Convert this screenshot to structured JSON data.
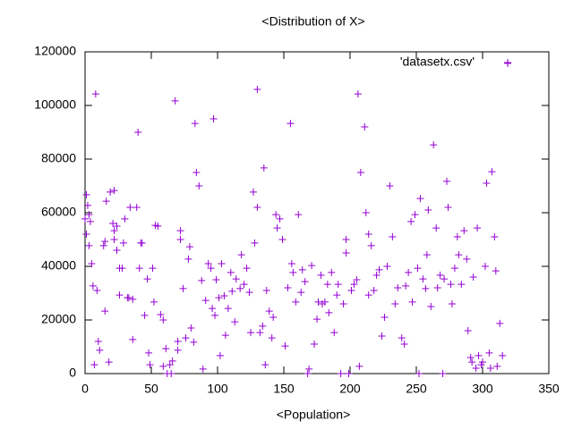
{
  "chart_data": {
    "type": "scatter",
    "title": "<Distribution of X>",
    "x_label": "<Population>",
    "xlim": [
      0,
      350
    ],
    "xticks": [
      0,
      50,
      100,
      150,
      200,
      250,
      300,
      350
    ],
    "ylim": [
      0,
      120000
    ],
    "yticks": [
      0,
      20000,
      40000,
      60000,
      80000,
      100000,
      120000
    ],
    "legend": "top-right",
    "grid": false,
    "x": [
      0,
      1,
      1,
      2,
      3,
      4,
      3,
      5,
      6,
      8,
      7,
      9,
      10,
      11,
      14,
      15,
      15,
      16,
      18,
      19,
      21,
      22,
      22,
      22,
      24,
      24,
      26,
      26,
      28,
      29,
      30,
      32,
      33,
      34,
      36,
      36,
      39,
      40,
      41,
      42,
      43,
      45,
      47,
      48,
      49,
      51,
      52,
      53,
      55,
      57,
      59,
      59,
      61,
      62,
      64,
      65,
      66,
      68,
      70,
      70,
      72,
      72,
      74,
      76,
      78,
      79,
      80,
      82,
      83,
      84,
      86,
      88,
      89,
      91,
      93,
      95,
      96,
      97,
      98,
      99,
      101,
      102,
      103,
      105,
      106,
      108,
      110,
      111,
      113,
      114,
      117,
      118,
      120,
      122,
      124,
      125,
      127,
      128,
      130,
      130,
      132,
      134,
      135,
      136,
      137,
      139,
      141,
      142,
      144,
      145,
      147,
      149,
      151,
      153,
      155,
      156,
      157,
      159,
      161,
      163,
      164,
      166,
      168,
      169,
      171,
      173,
      175,
      176,
      178,
      179,
      181,
      183,
      184,
      186,
      188,
      190,
      191,
      193,
      195,
      197,
      197,
      199,
      201,
      203,
      205,
      206,
      207,
      208,
      211,
      212,
      214,
      214,
      216,
      218,
      220,
      222,
      224,
      226,
      228,
      230,
      232,
      234,
      236,
      239,
      241,
      242,
      244,
      246,
      247,
      249,
      251,
      252,
      253,
      255,
      257,
      258,
      259,
      261,
      263,
      265,
      266,
      268,
      270,
      271,
      273,
      274,
      276,
      277,
      279,
      281,
      282,
      284,
      286,
      288,
      289,
      291,
      292,
      293,
      295,
      296,
      297,
      299,
      300,
      302,
      303,
      305,
      306,
      307,
      309,
      310,
      311,
      313,
      315,
      319
    ],
    "series": [
      {
        "name": "'datasetx.csv'",
        "color": "#9400d3",
        "values": [
          57700,
          52000,
          66700,
          62700,
          59300,
          56700,
          47700,
          41000,
          32700,
          104300,
          3300,
          31000,
          12000,
          8700,
          47700,
          49300,
          23300,
          64300,
          4300,
          67700,
          56000,
          53300,
          68300,
          50000,
          55000,
          46000,
          39300,
          29300,
          39300,
          48700,
          57700,
          28300,
          28300,
          62000,
          27700,
          12700,
          62000,
          90000,
          39300,
          48700,
          48700,
          21700,
          35300,
          7700,
          3300,
          39300,
          26700,
          55300,
          55000,
          22000,
          20000,
          2700,
          9300,
          0,
          3300,
          0,
          4700,
          101700,
          12000,
          8700,
          53300,
          50000,
          31700,
          13300,
          42700,
          47300,
          17000,
          11700,
          93300,
          75000,
          70000,
          34700,
          1700,
          27300,
          41000,
          39300,
          24300,
          95000,
          21700,
          35000,
          28300,
          6700,
          41000,
          29000,
          14300,
          24300,
          37700,
          30700,
          19300,
          35300,
          31700,
          44300,
          33300,
          39300,
          30300,
          15300,
          67700,
          48700,
          106000,
          62000,
          15300,
          17700,
          76700,
          3300,
          31000,
          23300,
          13300,
          21000,
          59300,
          54300,
          57700,
          50000,
          10300,
          32000,
          93300,
          41000,
          37700,
          26700,
          59300,
          30300,
          38700,
          34300,
          0,
          1700,
          40300,
          11000,
          20300,
          26700,
          36700,
          26000,
          26700,
          33300,
          22700,
          37700,
          15300,
          29300,
          33300,
          0,
          26000,
          50000,
          45000,
          0,
          31000,
          33300,
          35000,
          104300,
          2700,
          75000,
          92000,
          60000,
          52000,
          29300,
          47700,
          31000,
          36700,
          38700,
          14000,
          21000,
          40000,
          70000,
          51000,
          26000,
          32000,
          13300,
          11000,
          32700,
          37700,
          56700,
          26700,
          59300,
          39300,
          0,
          65300,
          35300,
          31700,
          44300,
          61000,
          25000,
          85300,
          54300,
          32000,
          36700,
          0,
          35300,
          71700,
          62000,
          33300,
          26000,
          39300,
          51000,
          44300,
          33300,
          53300,
          42700,
          16000,
          6000,
          4300,
          36000,
          2000,
          54300,
          6700,
          3300,
          4300,
          40000,
          71000,
          7700,
          2000,
          75300,
          51000,
          38300,
          2700,
          18700,
          6700,
          115700
        ]
      }
    ]
  }
}
